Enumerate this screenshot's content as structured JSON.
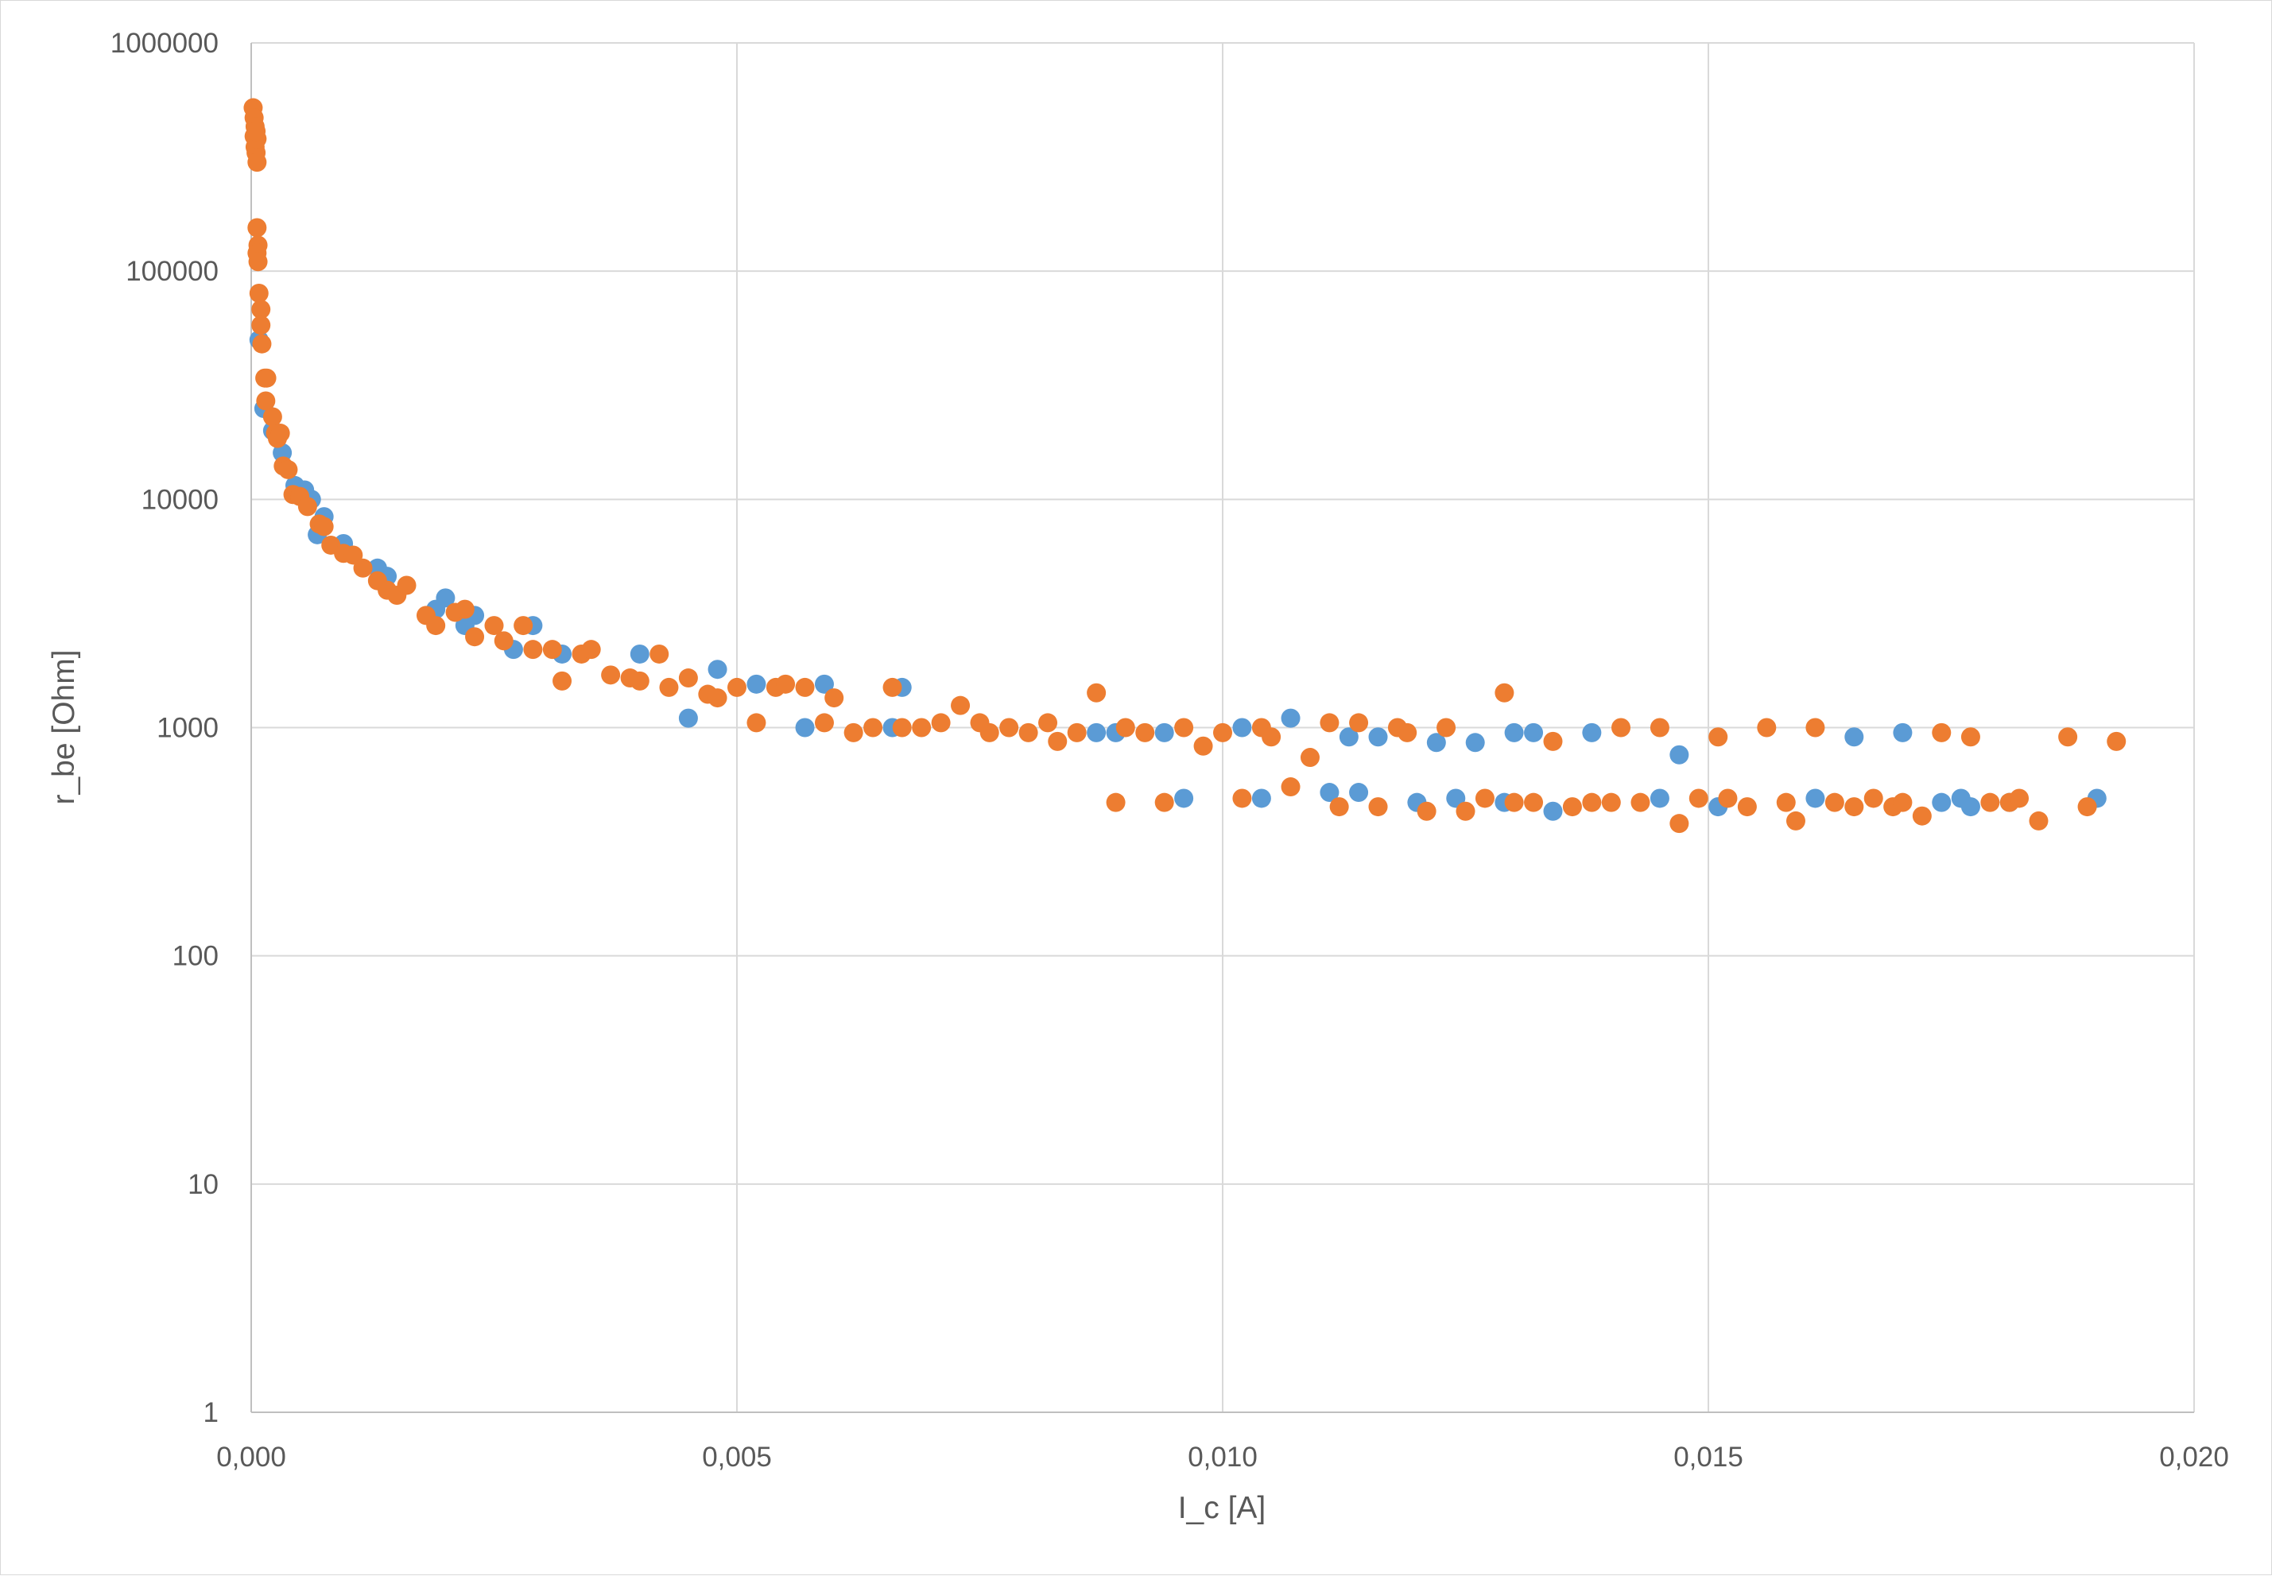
{
  "chart_data": {
    "type": "scatter",
    "title": "",
    "xlabel": "I_c [A]",
    "ylabel": "r_be [Ohm]",
    "xlim": [
      0,
      0.02
    ],
    "ylim": [
      1,
      1000000
    ],
    "yscale": "log",
    "grid": true,
    "legend": "none",
    "x_ticks": [
      0,
      0.005,
      0.01,
      0.015,
      0.02
    ],
    "x_tick_labels": [
      "0,000",
      "0,005",
      "0,010",
      "0,015",
      "0,020"
    ],
    "y_ticks": [
      1,
      10,
      100,
      1000,
      10000,
      100000,
      1000000
    ],
    "y_tick_labels": [
      "1",
      "10",
      "100",
      "1000",
      "10000",
      "100000",
      "1000000"
    ],
    "series": [
      {
        "color": "#5b9bd5",
        "points": [
          [
            8e-05,
            50000
          ],
          [
            0.00013,
            25000
          ],
          [
            0.00022,
            20000
          ],
          [
            0.00032,
            16000
          ],
          [
            0.00045,
            11500
          ],
          [
            0.00055,
            11000
          ],
          [
            0.00062,
            10000
          ],
          [
            0.00068,
            7000
          ],
          [
            0.00075,
            8400
          ],
          [
            0.00095,
            6400
          ],
          [
            0.0013,
            5000
          ],
          [
            0.0014,
            4600
          ],
          [
            0.0019,
            3300
          ],
          [
            0.002,
            3700
          ],
          [
            0.0022,
            2800
          ],
          [
            0.0023,
            3100
          ],
          [
            0.0027,
            2200
          ],
          [
            0.0029,
            2800
          ],
          [
            0.0032,
            2100
          ],
          [
            0.004,
            2100
          ],
          [
            0.0045,
            1100
          ],
          [
            0.0048,
            1800
          ],
          [
            0.0052,
            1550
          ],
          [
            0.0057,
            1000
          ],
          [
            0.0059,
            1550
          ],
          [
            0.0066,
            1000
          ],
          [
            0.0067,
            1500
          ],
          [
            0.0087,
            950
          ],
          [
            0.0089,
            950
          ],
          [
            0.0094,
            950
          ],
          [
            0.0096,
            490
          ],
          [
            0.0102,
            1000
          ],
          [
            0.0104,
            490
          ],
          [
            0.0107,
            1100
          ],
          [
            0.0111,
            520
          ],
          [
            0.0113,
            910
          ],
          [
            0.0114,
            520
          ],
          [
            0.0116,
            910
          ],
          [
            0.012,
            470
          ],
          [
            0.0122,
            860
          ],
          [
            0.0124,
            490
          ],
          [
            0.0126,
            860
          ],
          [
            0.0129,
            470
          ],
          [
            0.013,
            950
          ],
          [
            0.0132,
            950
          ],
          [
            0.0134,
            430
          ],
          [
            0.0138,
            950
          ],
          [
            0.0145,
            490
          ],
          [
            0.0147,
            760
          ],
          [
            0.0151,
            450
          ],
          [
            0.0161,
            490
          ],
          [
            0.0165,
            910
          ],
          [
            0.017,
            950
          ],
          [
            0.0174,
            470
          ],
          [
            0.0176,
            490
          ],
          [
            0.0177,
            450
          ],
          [
            0.0181,
            470
          ],
          [
            0.019,
            490
          ]
        ]
      },
      {
        "color": "#ed7d31",
        "points": [
          [
            2e-05,
            520000
          ],
          [
            3e-05,
            470000
          ],
          [
            4e-05,
            430000
          ],
          [
            3e-05,
            390000
          ],
          [
            4e-05,
            350000
          ],
          [
            5e-05,
            330000
          ],
          [
            6e-05,
            300000
          ],
          [
            6e-05,
            380000
          ],
          [
            5e-05,
            410000
          ],
          [
            6e-05,
            155000
          ],
          [
            7e-05,
            130000
          ],
          [
            6e-05,
            120000
          ],
          [
            7e-05,
            110000
          ],
          [
            8e-05,
            80000
          ],
          [
            0.0001,
            68000
          ],
          [
            0.0001,
            58000
          ],
          [
            0.00011,
            48000
          ],
          [
            0.00014,
            34000
          ],
          [
            0.00016,
            34000
          ],
          [
            0.00015,
            27000
          ],
          [
            0.00022,
            23000
          ],
          [
            0.00025,
            19500
          ],
          [
            0.00027,
            18500
          ],
          [
            0.0003,
            19500
          ],
          [
            0.00033,
            14000
          ],
          [
            0.00038,
            13500
          ],
          [
            0.00043,
            10500
          ],
          [
            0.0005,
            10300
          ],
          [
            0.00058,
            9300
          ],
          [
            0.0007,
            7800
          ],
          [
            0.00075,
            7600
          ],
          [
            0.00082,
            6300
          ],
          [
            0.00095,
            5800
          ],
          [
            0.00105,
            5700
          ],
          [
            0.00115,
            5000
          ],
          [
            0.0013,
            4400
          ],
          [
            0.0014,
            4000
          ],
          [
            0.0015,
            3800
          ],
          [
            0.0016,
            4200
          ],
          [
            0.0018,
            3100
          ],
          [
            0.0019,
            2800
          ],
          [
            0.0021,
            3200
          ],
          [
            0.0022,
            3300
          ],
          [
            0.0023,
            2500
          ],
          [
            0.0025,
            2800
          ],
          [
            0.0026,
            2400
          ],
          [
            0.0028,
            2800
          ],
          [
            0.0029,
            2200
          ],
          [
            0.0031,
            2200
          ],
          [
            0.0032,
            1600
          ],
          [
            0.0034,
            2100
          ],
          [
            0.0035,
            2200
          ],
          [
            0.0037,
            1700
          ],
          [
            0.0039,
            1650
          ],
          [
            0.004,
            1600
          ],
          [
            0.0042,
            2100
          ],
          [
            0.0043,
            1500
          ],
          [
            0.0045,
            1650
          ],
          [
            0.0047,
            1400
          ],
          [
            0.0048,
            1350
          ],
          [
            0.005,
            1500
          ],
          [
            0.0052,
            1050
          ],
          [
            0.0054,
            1500
          ],
          [
            0.0055,
            1550
          ],
          [
            0.0057,
            1500
          ],
          [
            0.0059,
            1050
          ],
          [
            0.006,
            1350
          ],
          [
            0.0062,
            950
          ],
          [
            0.0064,
            1000
          ],
          [
            0.0066,
            1500
          ],
          [
            0.0067,
            1000
          ],
          [
            0.0069,
            1000
          ],
          [
            0.0071,
            1050
          ],
          [
            0.0073,
            1250
          ],
          [
            0.0075,
            1050
          ],
          [
            0.0076,
            950
          ],
          [
            0.0078,
            1000
          ],
          [
            0.008,
            950
          ],
          [
            0.0082,
            1050
          ],
          [
            0.0083,
            870
          ],
          [
            0.0085,
            950
          ],
          [
            0.0087,
            1420
          ],
          [
            0.0089,
            470
          ],
          [
            0.009,
            1000
          ],
          [
            0.0092,
            950
          ],
          [
            0.0094,
            470
          ],
          [
            0.0096,
            1000
          ],
          [
            0.0098,
            830
          ],
          [
            0.01,
            950
          ],
          [
            0.0102,
            490
          ],
          [
            0.0104,
            1000
          ],
          [
            0.0105,
            910
          ],
          [
            0.0107,
            550
          ],
          [
            0.0109,
            740
          ],
          [
            0.0111,
            1050
          ],
          [
            0.0112,
            450
          ],
          [
            0.0114,
            1050
          ],
          [
            0.0116,
            450
          ],
          [
            0.0118,
            1000
          ],
          [
            0.0119,
            950
          ],
          [
            0.0121,
            430
          ],
          [
            0.0123,
            1000
          ],
          [
            0.0125,
            430
          ],
          [
            0.0127,
            490
          ],
          [
            0.0129,
            1420
          ],
          [
            0.013,
            470
          ],
          [
            0.0132,
            470
          ],
          [
            0.0134,
            870
          ],
          [
            0.0136,
            450
          ],
          [
            0.0138,
            470
          ],
          [
            0.014,
            470
          ],
          [
            0.0141,
            1000
          ],
          [
            0.0143,
            470
          ],
          [
            0.0145,
            1000
          ],
          [
            0.0147,
            380
          ],
          [
            0.0149,
            490
          ],
          [
            0.0151,
            910
          ],
          [
            0.0152,
            490
          ],
          [
            0.0154,
            450
          ],
          [
            0.0156,
            1000
          ],
          [
            0.0158,
            470
          ],
          [
            0.0159,
            390
          ],
          [
            0.0161,
            1000
          ],
          [
            0.0163,
            470
          ],
          [
            0.0165,
            450
          ],
          [
            0.0167,
            490
          ],
          [
            0.0169,
            450
          ],
          [
            0.017,
            470
          ],
          [
            0.0172,
            410
          ],
          [
            0.0174,
            950
          ],
          [
            0.0177,
            910
          ],
          [
            0.0179,
            470
          ],
          [
            0.0181,
            470
          ],
          [
            0.0182,
            490
          ],
          [
            0.0184,
            390
          ],
          [
            0.0187,
            910
          ],
          [
            0.0189,
            450
          ],
          [
            0.0192,
            870
          ]
        ]
      }
    ]
  }
}
